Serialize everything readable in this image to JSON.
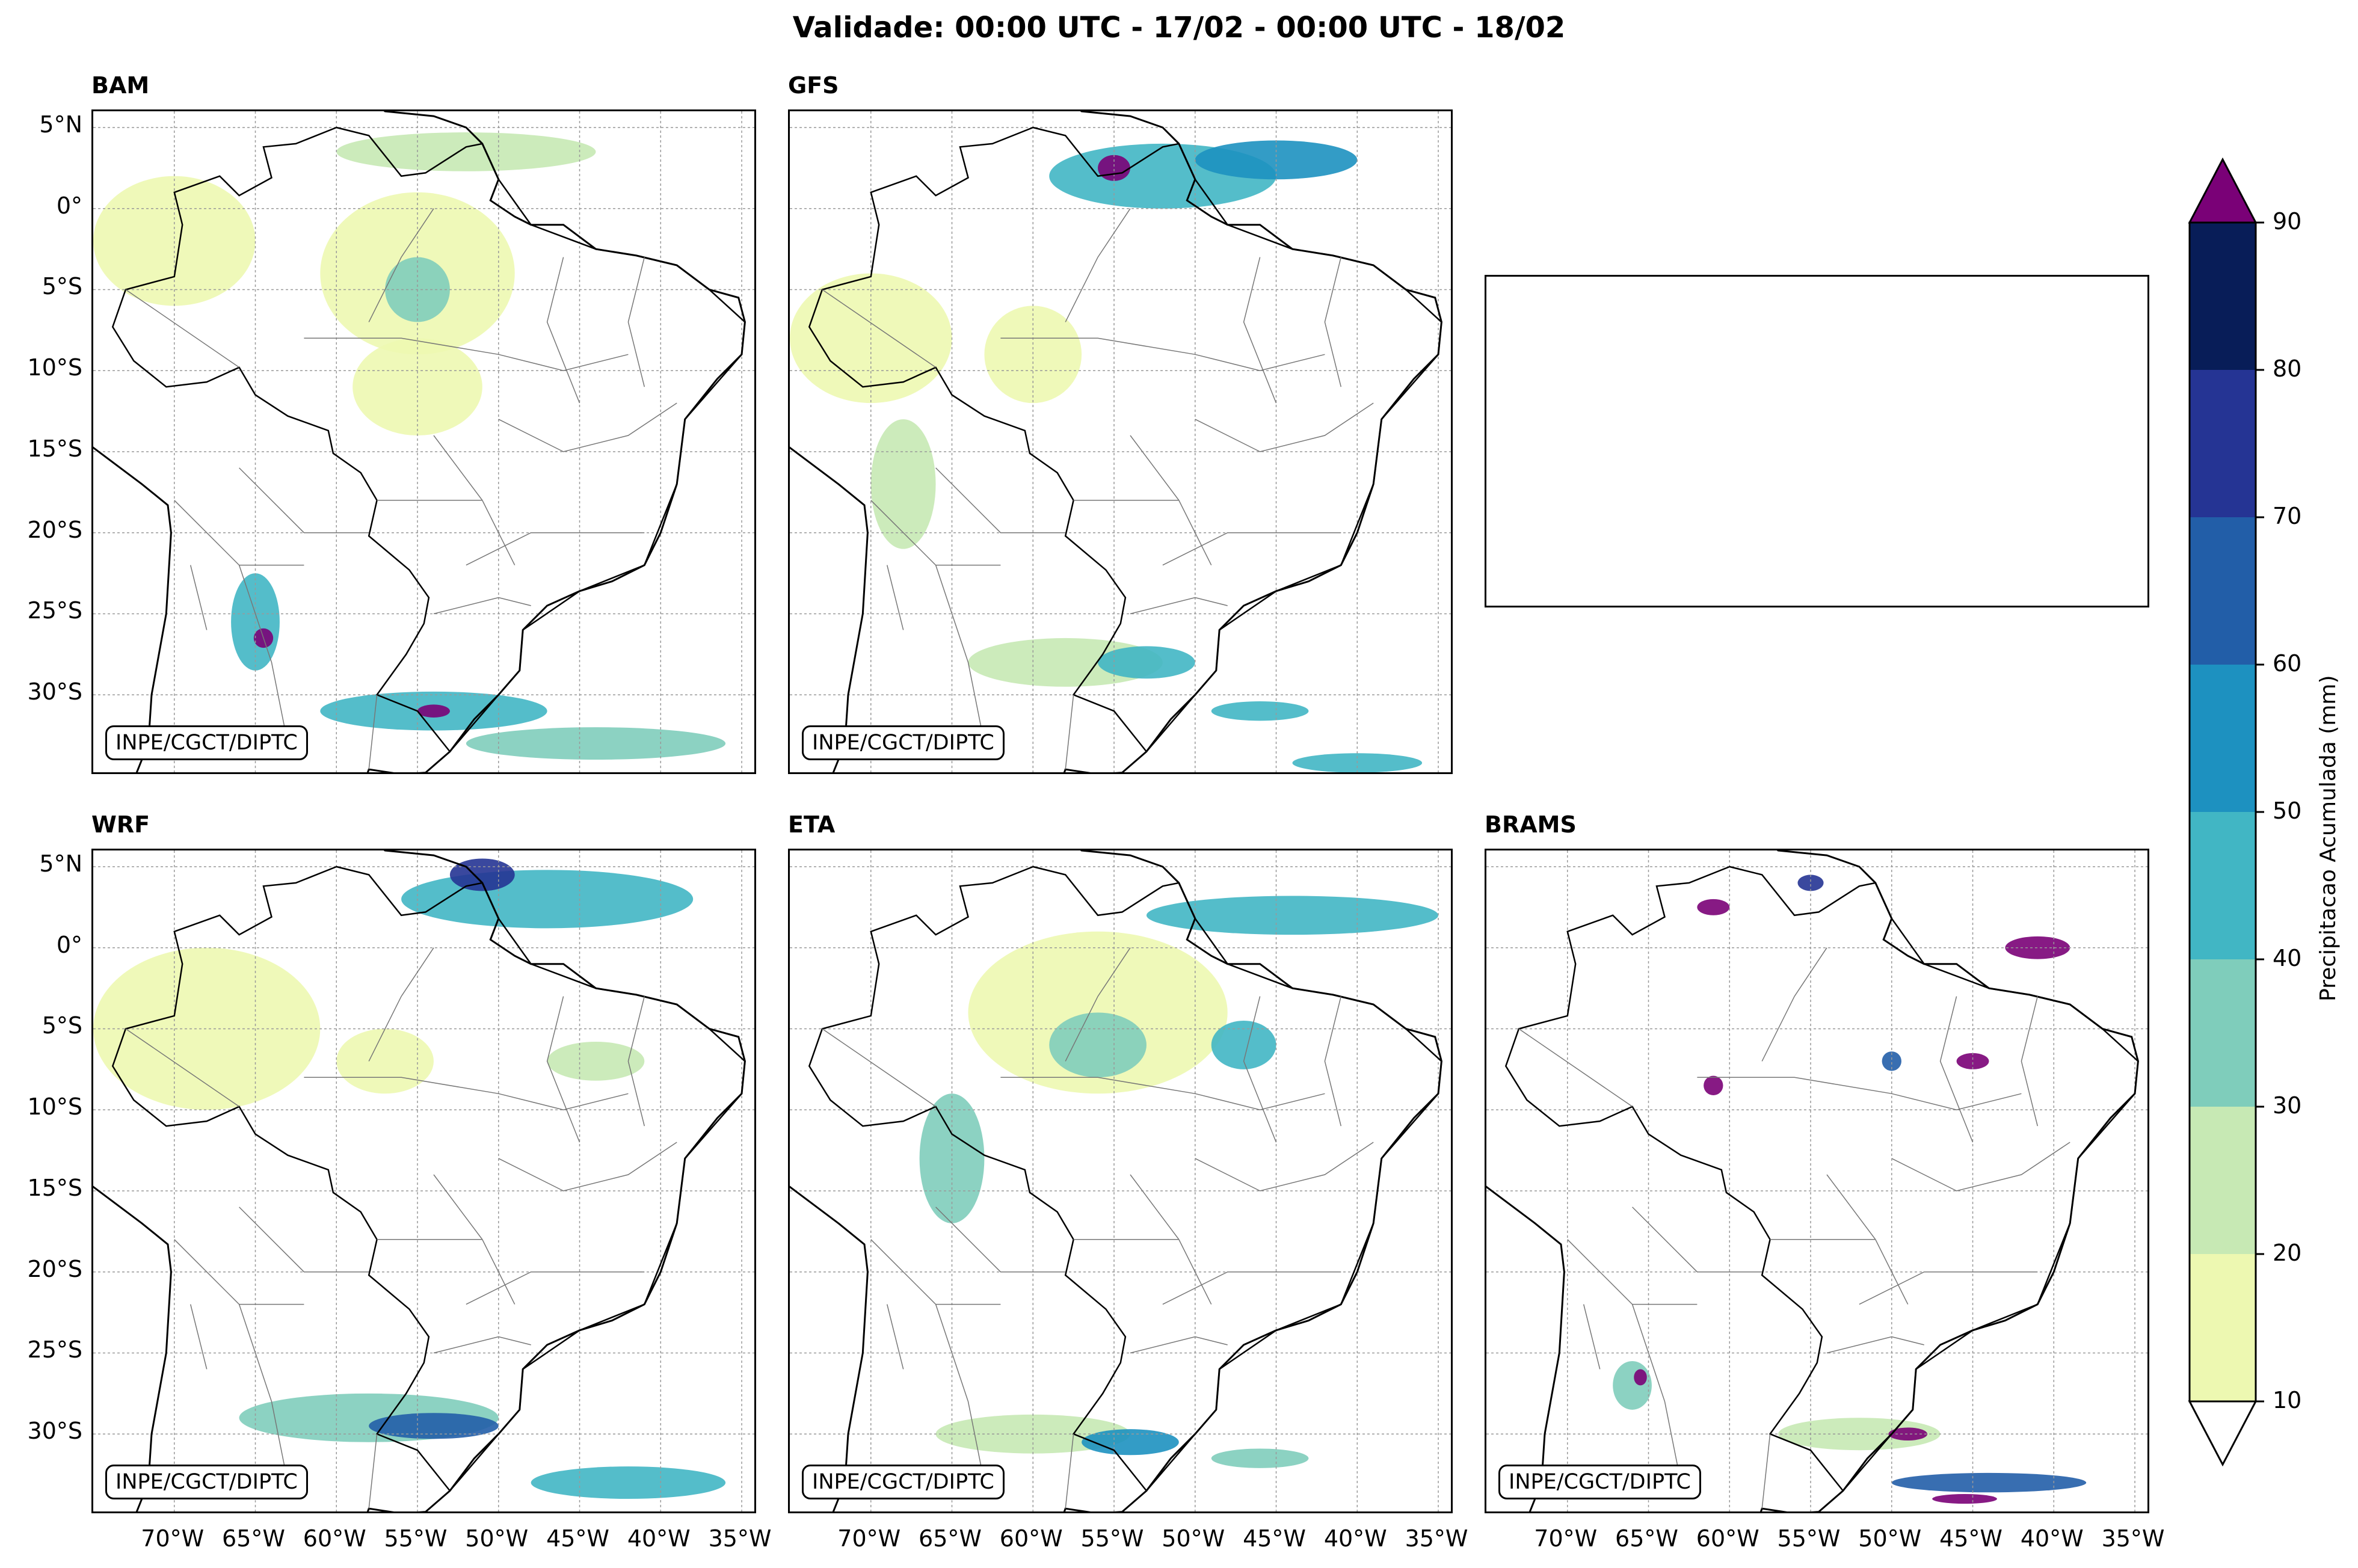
{
  "title": "Validade: 00:00 UTC - 17/02 - 00:00 UTC - 18/02",
  "credit": "INPE/CGCT/DIPTC",
  "panels": [
    {
      "name": "BAM",
      "yticks": true,
      "xticks": true
    },
    {
      "name": "GFS",
      "yticks": false,
      "xticks": true
    },
    {
      "name": "",
      "empty": true
    },
    {
      "name": "WRF",
      "yticks": true,
      "xticks": true
    },
    {
      "name": "ETA",
      "yticks": false,
      "xticks": true
    },
    {
      "name": "BRAMS",
      "yticks": false,
      "xticks": true
    }
  ],
  "chart_data": {
    "type": "contour-map",
    "title": "Validade: 00:00 UTC - 17/02 - 00:00 UTC - 18/02",
    "lat_labels": [
      "5°N",
      "0°",
      "5°S",
      "10°S",
      "15°S",
      "20°S",
      "25°S",
      "30°S"
    ],
    "lat_values": [
      5,
      0,
      -5,
      -10,
      -15,
      -20,
      -25,
      -30
    ],
    "lon_labels": [
      "70°W",
      "65°W",
      "60°W",
      "55°W",
      "50°W",
      "45°W",
      "40°W",
      "35°W"
    ],
    "lon_values": [
      -70,
      -65,
      -60,
      -55,
      -50,
      -45,
      -40,
      -35
    ],
    "lat_range": [
      -35,
      6
    ],
    "lon_range": [
      -75,
      -34
    ],
    "colorbar": {
      "label": "Precipitacao Acumulada (mm)",
      "levels": [
        10,
        20,
        30,
        40,
        50,
        60,
        70,
        80,
        90
      ],
      "tick_labels": [
        "10",
        "20",
        "30",
        "40",
        "50",
        "60",
        "70",
        "80",
        "90"
      ],
      "colors": [
        "#edf8b1",
        "#c7e9b4",
        "#7fcdbb",
        "#41b6c4",
        "#1d91c0",
        "#225ea8",
        "#253494",
        "#081d58"
      ],
      "over_color": "#7a0177",
      "under_color": "#ffffff"
    },
    "precip_blobs": {
      "BAM": [
        {
          "lon": -52,
          "lat": 3.5,
          "rx": 8,
          "ry": 1.2,
          "level": 20
        },
        {
          "lon": -55,
          "lat": -4,
          "rx": 6,
          "ry": 5,
          "level": 10
        },
        {
          "lon": -55,
          "lat": -5,
          "rx": 2,
          "ry": 2,
          "level": 30
        },
        {
          "lon": -70,
          "lat": -2,
          "rx": 5,
          "ry": 4,
          "level": 10
        },
        {
          "lon": -55,
          "lat": -11,
          "rx": 4,
          "ry": 3,
          "level": 10
        },
        {
          "lon": -65,
          "lat": -25.5,
          "rx": 1.5,
          "ry": 3,
          "level": 40
        },
        {
          "lon": -64.5,
          "lat": -26.5,
          "rx": 0.6,
          "ry": 0.6,
          "level": 90
        },
        {
          "lon": -54,
          "lat": -31,
          "rx": 7,
          "ry": 1.2,
          "level": 40
        },
        {
          "lon": -54,
          "lat": -31,
          "rx": 1,
          "ry": 0.4,
          "level": 90
        },
        {
          "lon": -44,
          "lat": -33,
          "rx": 8,
          "ry": 1,
          "level": 30
        }
      ],
      "GFS": [
        {
          "lon": -52,
          "lat": 2,
          "rx": 7,
          "ry": 2,
          "level": 40
        },
        {
          "lon": -55,
          "lat": 2.5,
          "rx": 1,
          "ry": 0.8,
          "level": 90
        },
        {
          "lon": -45,
          "lat": 3,
          "rx": 5,
          "ry": 1.2,
          "level": 50
        },
        {
          "lon": -70,
          "lat": -8,
          "rx": 5,
          "ry": 4,
          "level": 10
        },
        {
          "lon": -60,
          "lat": -9,
          "rx": 3,
          "ry": 3,
          "level": 10
        },
        {
          "lon": -68,
          "lat": -17,
          "rx": 2,
          "ry": 4,
          "level": 20
        },
        {
          "lon": -58,
          "lat": -28,
          "rx": 6,
          "ry": 1.5,
          "level": 20
        },
        {
          "lon": -53,
          "lat": -28,
          "rx": 3,
          "ry": 1,
          "level": 40
        },
        {
          "lon": -46,
          "lat": -31,
          "rx": 3,
          "ry": 0.6,
          "level": 40
        },
        {
          "lon": -40,
          "lat": -34.2,
          "rx": 4,
          "ry": 0.6,
          "level": 40
        }
      ],
      "WRF": [
        {
          "lon": -47,
          "lat": 3,
          "rx": 9,
          "ry": 1.8,
          "level": 40
        },
        {
          "lon": -51,
          "lat": 4.5,
          "rx": 2,
          "ry": 1,
          "level": 70
        },
        {
          "lon": -68,
          "lat": -5,
          "rx": 7,
          "ry": 5,
          "level": 10
        },
        {
          "lon": -57,
          "lat": -7,
          "rx": 3,
          "ry": 2,
          "level": 10
        },
        {
          "lon": -44,
          "lat": -7,
          "rx": 3,
          "ry": 1.2,
          "level": 20
        },
        {
          "lon": -58,
          "lat": -29,
          "rx": 8,
          "ry": 1.5,
          "level": 30
        },
        {
          "lon": -54,
          "lat": -29.5,
          "rx": 4,
          "ry": 0.8,
          "level": 60
        },
        {
          "lon": -42,
          "lat": -33,
          "rx": 6,
          "ry": 1,
          "level": 40
        }
      ],
      "ETA": [
        {
          "lon": -44,
          "lat": 2,
          "rx": 9,
          "ry": 1.2,
          "level": 40
        },
        {
          "lon": -56,
          "lat": -4,
          "rx": 8,
          "ry": 5,
          "level": 10
        },
        {
          "lon": -56,
          "lat": -6,
          "rx": 3,
          "ry": 2,
          "level": 30
        },
        {
          "lon": -47,
          "lat": -6,
          "rx": 2,
          "ry": 1.5,
          "level": 40
        },
        {
          "lon": -65,
          "lat": -13,
          "rx": 2,
          "ry": 4,
          "level": 30
        },
        {
          "lon": -60,
          "lat": -30,
          "rx": 6,
          "ry": 1.2,
          "level": 20
        },
        {
          "lon": -54,
          "lat": -30.5,
          "rx": 3,
          "ry": 0.8,
          "level": 50
        },
        {
          "lon": -46,
          "lat": -31.5,
          "rx": 3,
          "ry": 0.6,
          "level": 30
        }
      ],
      "BRAMS": [
        {
          "lon": -61,
          "lat": 2.5,
          "rx": 1,
          "ry": 0.5,
          "level": 90
        },
        {
          "lon": -55,
          "lat": 4,
          "rx": 0.8,
          "ry": 0.5,
          "level": 70
        },
        {
          "lon": -41,
          "lat": 0,
          "rx": 2,
          "ry": 0.7,
          "level": 90
        },
        {
          "lon": -61,
          "lat": -8.5,
          "rx": 0.6,
          "ry": 0.6,
          "level": 90
        },
        {
          "lon": -50,
          "lat": -7,
          "rx": 0.6,
          "ry": 0.6,
          "level": 60
        },
        {
          "lon": -45,
          "lat": -7,
          "rx": 1,
          "ry": 0.5,
          "level": 90
        },
        {
          "lon": -66,
          "lat": -27,
          "rx": 1.2,
          "ry": 1.5,
          "level": 30
        },
        {
          "lon": -65.5,
          "lat": -26.5,
          "rx": 0.4,
          "ry": 0.5,
          "level": 90
        },
        {
          "lon": -52,
          "lat": -30,
          "rx": 5,
          "ry": 1,
          "level": 20
        },
        {
          "lon": -49,
          "lat": -30,
          "rx": 1.2,
          "ry": 0.4,
          "level": 90
        },
        {
          "lon": -44,
          "lat": -33,
          "rx": 6,
          "ry": 0.6,
          "level": 60
        },
        {
          "lon": -45.5,
          "lat": -34,
          "rx": 2,
          "ry": 0.3,
          "level": 90
        }
      ]
    }
  }
}
